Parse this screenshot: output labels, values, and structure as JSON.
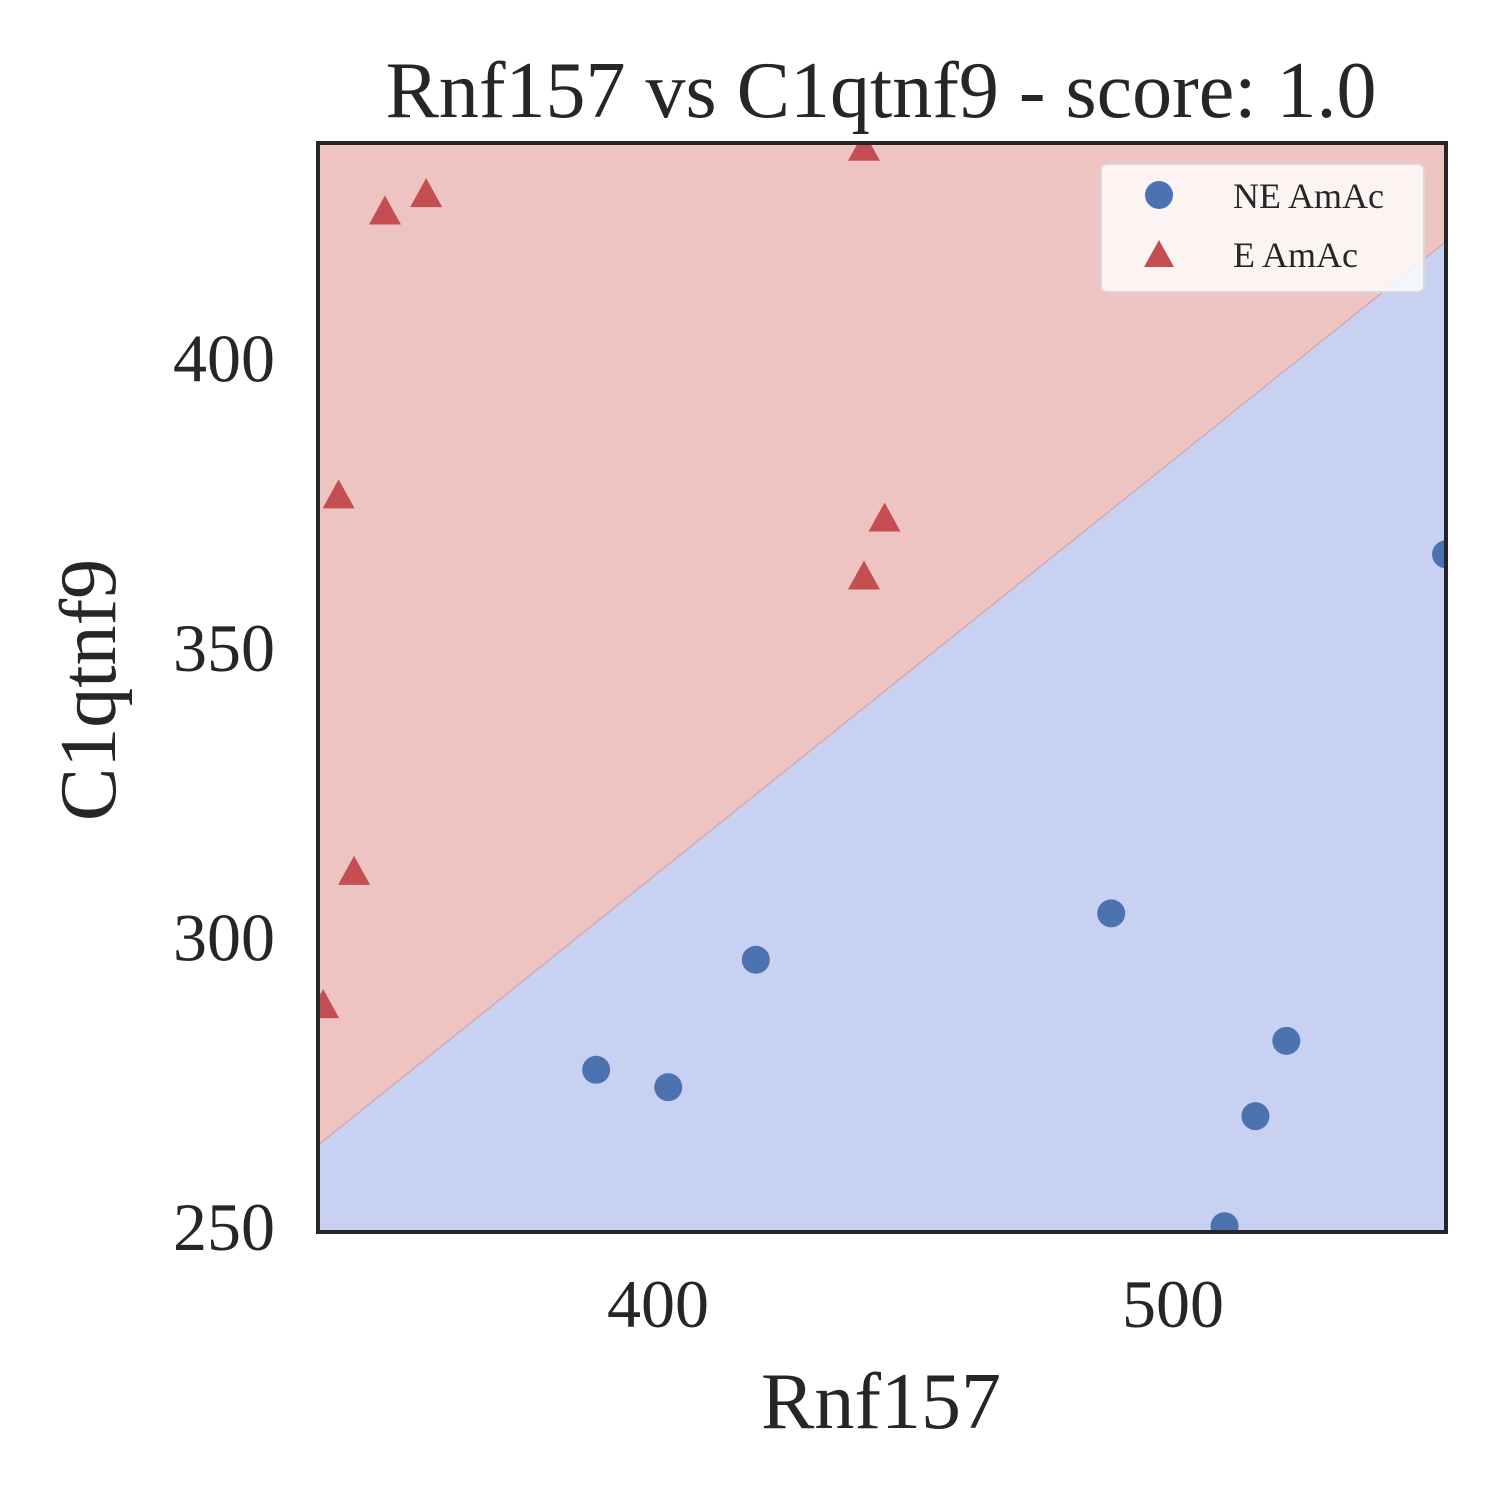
{
  "chart_data": {
    "type": "scatter",
    "title": "Rnf157 vs C1qtnf9 - score: 1.0",
    "xlabel": "Rnf157",
    "ylabel": "C1qtnf9",
    "xlim": [
      334,
      553
    ],
    "ylim": [
      249,
      437
    ],
    "x_ticks": [
      400,
      500
    ],
    "y_ticks": [
      250,
      300,
      350,
      400
    ],
    "grid": false,
    "legend_position": "top-right",
    "decision_boundary": {
      "x": [
        334,
        553
      ],
      "y": [
        264,
        420
      ],
      "above_color": "#eec4c3",
      "below_color": "#c9d1f2"
    },
    "series": [
      {
        "name": "NE AmAc",
        "marker": "circle",
        "color": "#4c72b0",
        "points": [
          {
            "x": 388,
            "y": 277
          },
          {
            "x": 402,
            "y": 274
          },
          {
            "x": 419,
            "y": 296
          },
          {
            "x": 488,
            "y": 304
          },
          {
            "x": 510,
            "y": 250
          },
          {
            "x": 516,
            "y": 269
          },
          {
            "x": 522,
            "y": 282
          },
          {
            "x": 553,
            "y": 366
          }
        ]
      },
      {
        "name": "E AmAc",
        "marker": "triangle",
        "color": "#c44e52",
        "points": [
          {
            "x": 335,
            "y": 288
          },
          {
            "x": 338,
            "y": 376
          },
          {
            "x": 341,
            "y": 311
          },
          {
            "x": 347,
            "y": 425
          },
          {
            "x": 355,
            "y": 428
          },
          {
            "x": 440,
            "y": 436
          },
          {
            "x": 440,
            "y": 362
          },
          {
            "x": 444,
            "y": 372
          }
        ]
      }
    ]
  }
}
